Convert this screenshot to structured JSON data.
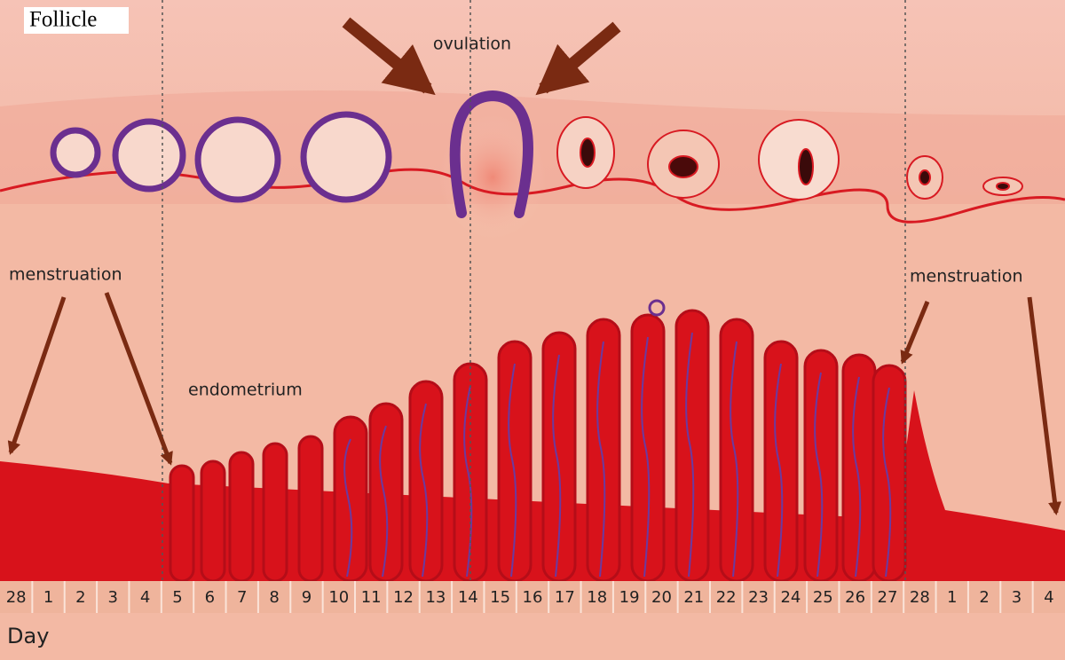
{
  "labels": {
    "follicle": "Follicle",
    "ovulation": "ovulation",
    "menstruation_left": "menstruation",
    "menstruation_right": "menstruation",
    "endometrium": "endometrium",
    "day_axis": "Day"
  },
  "days": [
    28,
    1,
    2,
    3,
    4,
    5,
    6,
    7,
    8,
    9,
    10,
    11,
    12,
    13,
    14,
    15,
    16,
    17,
    18,
    19,
    20,
    21,
    22,
    23,
    24,
    25,
    26,
    27,
    28,
    1,
    2,
    3,
    4
  ]
}
